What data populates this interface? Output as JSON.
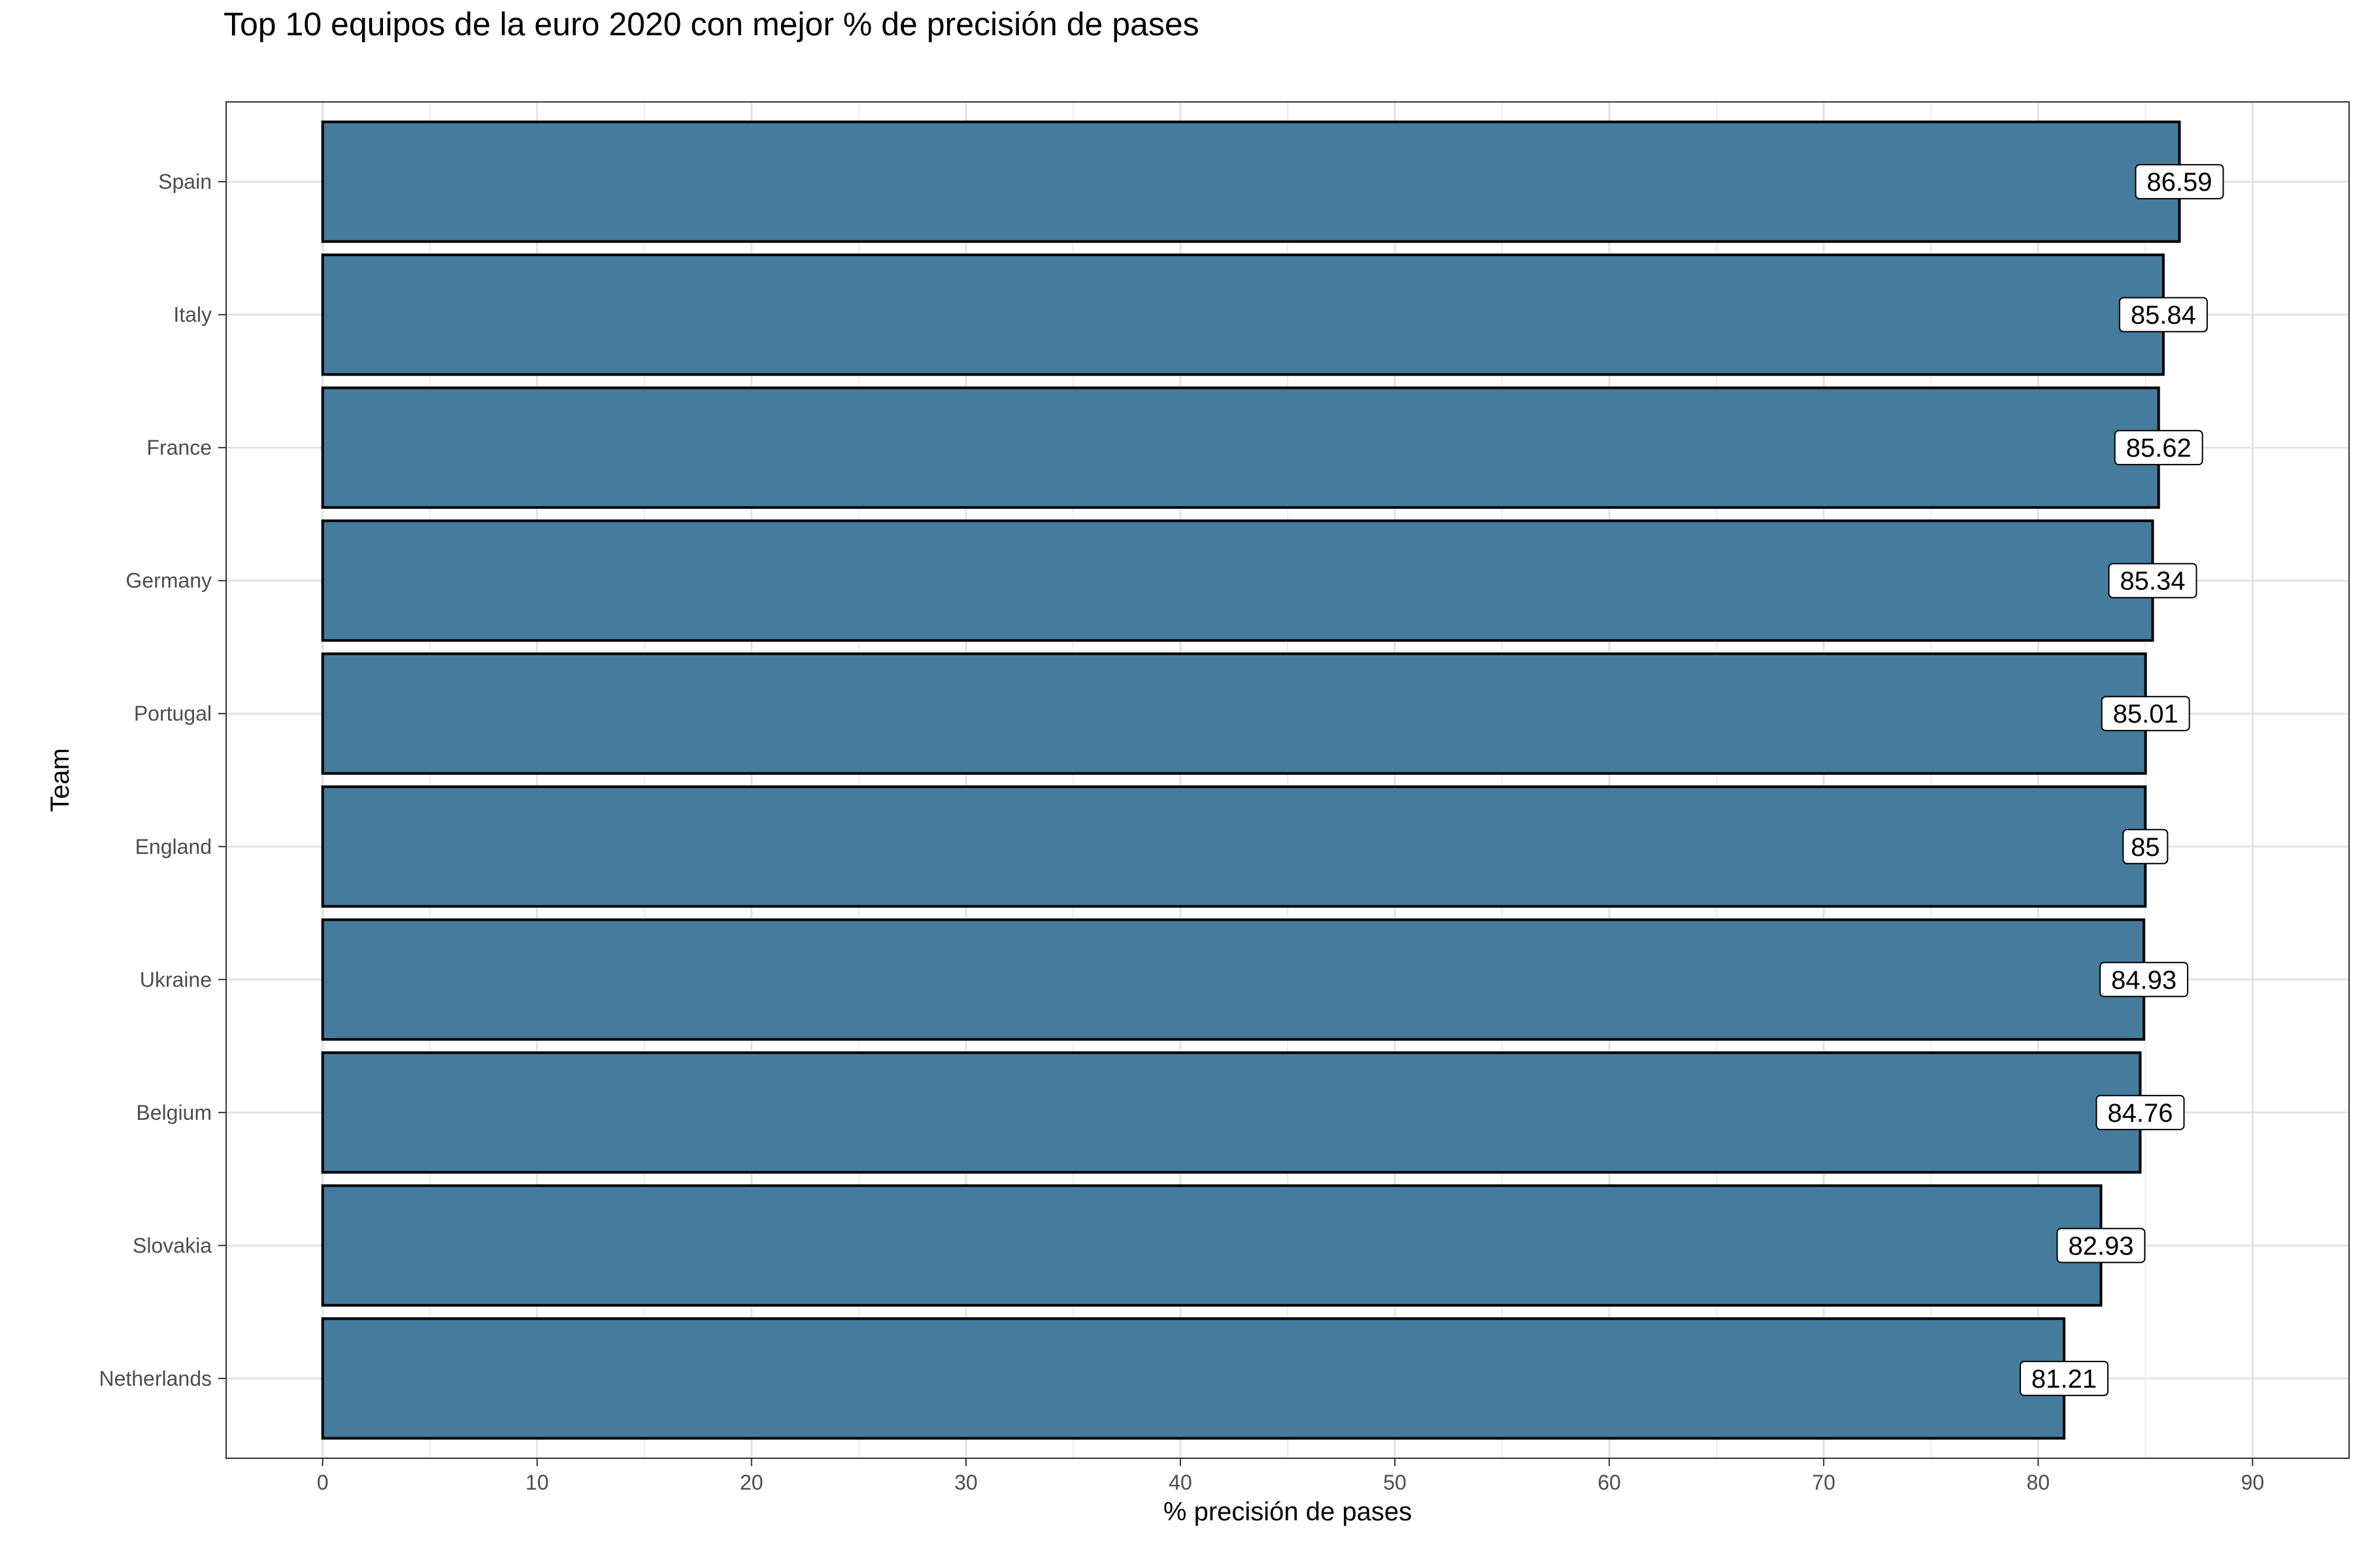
{
  "chart_data": {
    "type": "bar",
    "orientation": "horizontal",
    "title": "Top 10 equipos de la euro 2020 con mejor % de precisión de pases",
    "xlabel": "% precisión de pases",
    "ylabel": "Team",
    "categories": [
      "Spain",
      "Italy",
      "France",
      "Germany",
      "Portugal",
      "England",
      "Ukraine",
      "Belgium",
      "Slovakia",
      "Netherlands"
    ],
    "values": [
      86.59,
      85.84,
      85.62,
      85.34,
      85.01,
      85,
      84.93,
      84.76,
      82.93,
      81.21
    ],
    "data_labels": [
      "86.59",
      "85.84",
      "85.62",
      "85.34",
      "85.01",
      "85",
      "84.93",
      "84.76",
      "82.93",
      "81.21"
    ],
    "xticks": [
      0,
      10,
      20,
      30,
      40,
      50,
      60,
      70,
      80,
      90
    ],
    "xlim": [
      -4.5,
      94.5
    ],
    "grid": true,
    "bar_color": "#457b9d",
    "bar_border_color": "#000000"
  }
}
